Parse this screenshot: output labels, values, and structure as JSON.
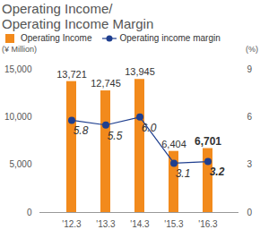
{
  "chart_data": {
    "type": "bar",
    "title": "Operating Income/\nOperating Income Margin",
    "categories": [
      "'12.3",
      "'13.3",
      "'14.3",
      "'15.3",
      "'16.3"
    ],
    "ylabel": "(¥ Million)",
    "y2label": "(%)",
    "ylim": [
      0,
      15000
    ],
    "yticks": [
      0,
      {
        "value": 5000,
        "label": "5,000"
      },
      {
        "value": 10000,
        "label": "10,000"
      },
      {
        "value": 15000,
        "label": "15,000"
      }
    ],
    "y2lim": [
      0,
      9
    ],
    "y2ticks": [
      0,
      3,
      6,
      9
    ],
    "grid": false,
    "data_labels": true,
    "legend": "top",
    "series": [
      {
        "name": "Operating Income",
        "type": "bar",
        "color": "#f28a1c",
        "values": [
          13721,
          12745,
          13945,
          6404,
          6701
        ],
        "value_labels": [
          "13,721",
          "12,745",
          "13,945",
          "6,404",
          "6,701"
        ]
      },
      {
        "name": "Operating income margin",
        "type": "line",
        "axis": "y2",
        "color": "#1f3f8f",
        "marker": "circle",
        "values": [
          5.8,
          5.5,
          6.0,
          3.1,
          3.2
        ],
        "value_labels": [
          "5.8",
          "5.5",
          "6.0",
          "3.1",
          "3.2"
        ]
      }
    ]
  }
}
